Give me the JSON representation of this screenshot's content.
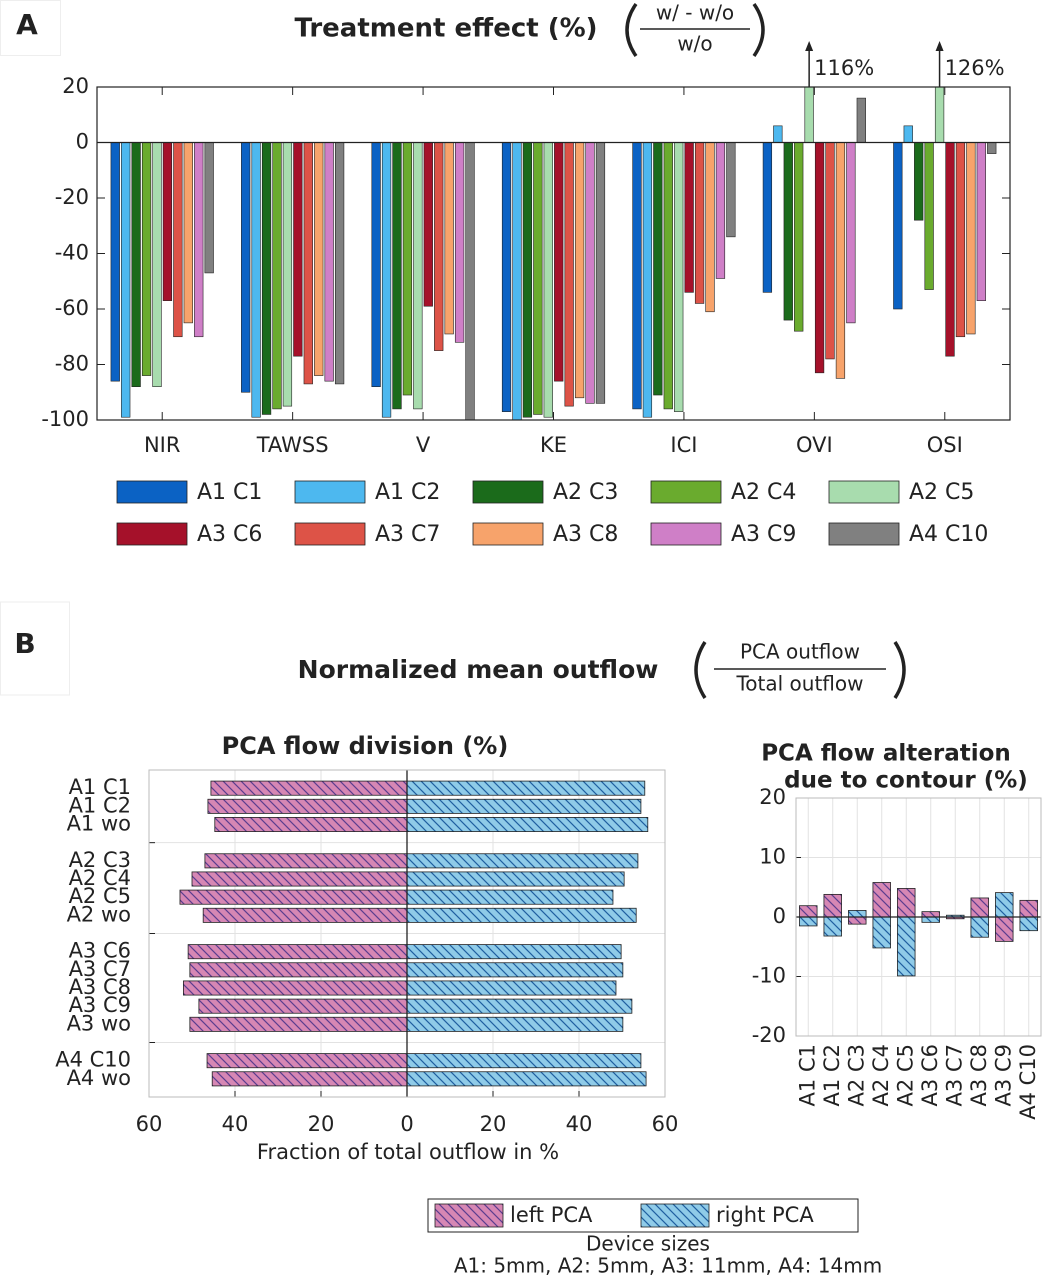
{
  "panels": [
    "A",
    "B"
  ],
  "chart_data": [
    {
      "type": "bar",
      "barmode": "group",
      "title": "Treatment effect (%)",
      "title_fraction": {
        "numerator": "w/ - w/o",
        "denominator": "w/o"
      },
      "categories": [
        "NIR",
        "TAWSS",
        "V",
        "KE",
        "ICI",
        "OVI",
        "OSI"
      ],
      "series": [
        {
          "name": "A1 C1",
          "color": "#0b62c4",
          "values": [
            -86,
            -90,
            -88,
            -97,
            -96,
            -54,
            -60
          ]
        },
        {
          "name": "A1 C2",
          "color": "#4db8ef",
          "values": [
            -99,
            -99,
            -99,
            -100,
            -99,
            6,
            6
          ]
        },
        {
          "name": "A2 C3",
          "color": "#1b6b1b",
          "values": [
            -88,
            -98,
            -96,
            -99,
            -91,
            -64,
            -28
          ]
        },
        {
          "name": "A2 C4",
          "color": "#6aab2e",
          "values": [
            -84,
            -96,
            -91,
            -98,
            -96,
            -68,
            -53
          ]
        },
        {
          "name": "A2 C5",
          "color": "#a8dcae",
          "values": [
            -88,
            -95,
            -96,
            -99,
            -97,
            116,
            126
          ],
          "value_labels": [
            null,
            null,
            null,
            null,
            null,
            "116%",
            "126%"
          ]
        },
        {
          "name": "A3 C6",
          "color": "#a5112a",
          "values": [
            -57,
            -77,
            -59,
            -86,
            -54,
            -83,
            -77
          ]
        },
        {
          "name": "A3 C7",
          "color": "#dd5347",
          "values": [
            -70,
            -87,
            -75,
            -95,
            -58,
            -78,
            -70
          ]
        },
        {
          "name": "A3 C8",
          "color": "#f7a36b",
          "values": [
            -65,
            -84,
            -69,
            -92,
            -61,
            -85,
            -69
          ]
        },
        {
          "name": "A3 C9",
          "color": "#cf7fc7",
          "values": [
            -70,
            -86,
            -72,
            -94,
            -49,
            -65,
            -57
          ]
        },
        {
          "name": "A4 C10",
          "color": "#808080",
          "values": [
            -47,
            -87,
            -100,
            -94,
            -34,
            16,
            -4
          ]
        }
      ],
      "ylim": [
        -100,
        20
      ],
      "yticks": [
        -100,
        -80,
        -60,
        -40,
        -20,
        0,
        20
      ],
      "grid": false,
      "legend": "bottom"
    },
    {
      "type": "barh",
      "title": "PCA flow division (%)",
      "xlabel": "Fraction of total outflow in %",
      "categories": [
        "A1 C1",
        "A1 C2",
        "A1 wo",
        null,
        "A2 C3",
        "A2 C4",
        "A2 C5",
        "A2 wo",
        null,
        "A3 C6",
        "A3 C7",
        "A3 C8",
        "A3 C9",
        "A3 wo",
        null,
        "A4 C10",
        "A4 wo"
      ],
      "series": [
        {
          "name": "left PCA",
          "color": "#d687b4",
          "hatch_color": "#5b3d8f",
          "values": [
            -45.6,
            -46.3,
            -44.7,
            null,
            -47.0,
            -50.0,
            -52.8,
            -47.4,
            null,
            -50.9,
            -50.5,
            -52.0,
            -48.4,
            -50.5,
            null,
            -46.5,
            -45.3
          ]
        },
        {
          "name": "right PCA",
          "color": "#8fcbe8",
          "hatch_color": "#1f5fa0",
          "values": [
            55.3,
            54.4,
            56.0,
            null,
            53.7,
            50.5,
            47.9,
            53.3,
            null,
            49.8,
            50.2,
            48.6,
            52.3,
            50.2,
            null,
            54.4,
            55.6
          ]
        }
      ],
      "xlim": [
        -60,
        60
      ],
      "xticks": [
        {
          "value": -60,
          "label": "60"
        },
        {
          "value": -40,
          "label": "40"
        },
        {
          "value": -20,
          "label": "20"
        },
        0,
        20,
        40,
        60
      ],
      "grid": true,
      "legend": "bottom"
    },
    {
      "type": "bar",
      "barmode": "overlay",
      "title": [
        "PCA flow alteration",
        "due to contour (%)"
      ],
      "categories": [
        "A1 C1",
        "A1 C2",
        "A2 C3",
        "A2 C4",
        "A2 C5",
        "A3 C6",
        "A3 C7",
        "A3 C8",
        "A3 C9",
        "A4 C10"
      ],
      "series": [
        {
          "color": "#d687b4",
          "hatch_color": "#5b3d8f",
          "values": [
            1.9,
            3.8,
            -1.2,
            5.8,
            4.8,
            0.9,
            -0.3,
            3.2,
            -4.1,
            2.8
          ]
        },
        {
          "color": "#8fcbe8",
          "hatch_color": "#1f5fa0",
          "values": [
            -1.5,
            -3.2,
            1.1,
            -5.2,
            -9.9,
            -0.9,
            0.3,
            -3.4,
            4.1,
            -2.3
          ]
        }
      ],
      "ylim": [
        -20,
        20
      ],
      "yticks": [
        -20,
        -10,
        0,
        10,
        20
      ],
      "grid": true
    }
  ],
  "section_b": {
    "title": "Normalized mean outflow",
    "title_fraction": {
      "numerator": "PCA outflow",
      "denominator": "Total outflow"
    }
  },
  "legend_note": {
    "title": "Device sizes",
    "text": "A1: 5mm, A2: 5mm, A3: 11mm, A4: 14mm"
  }
}
